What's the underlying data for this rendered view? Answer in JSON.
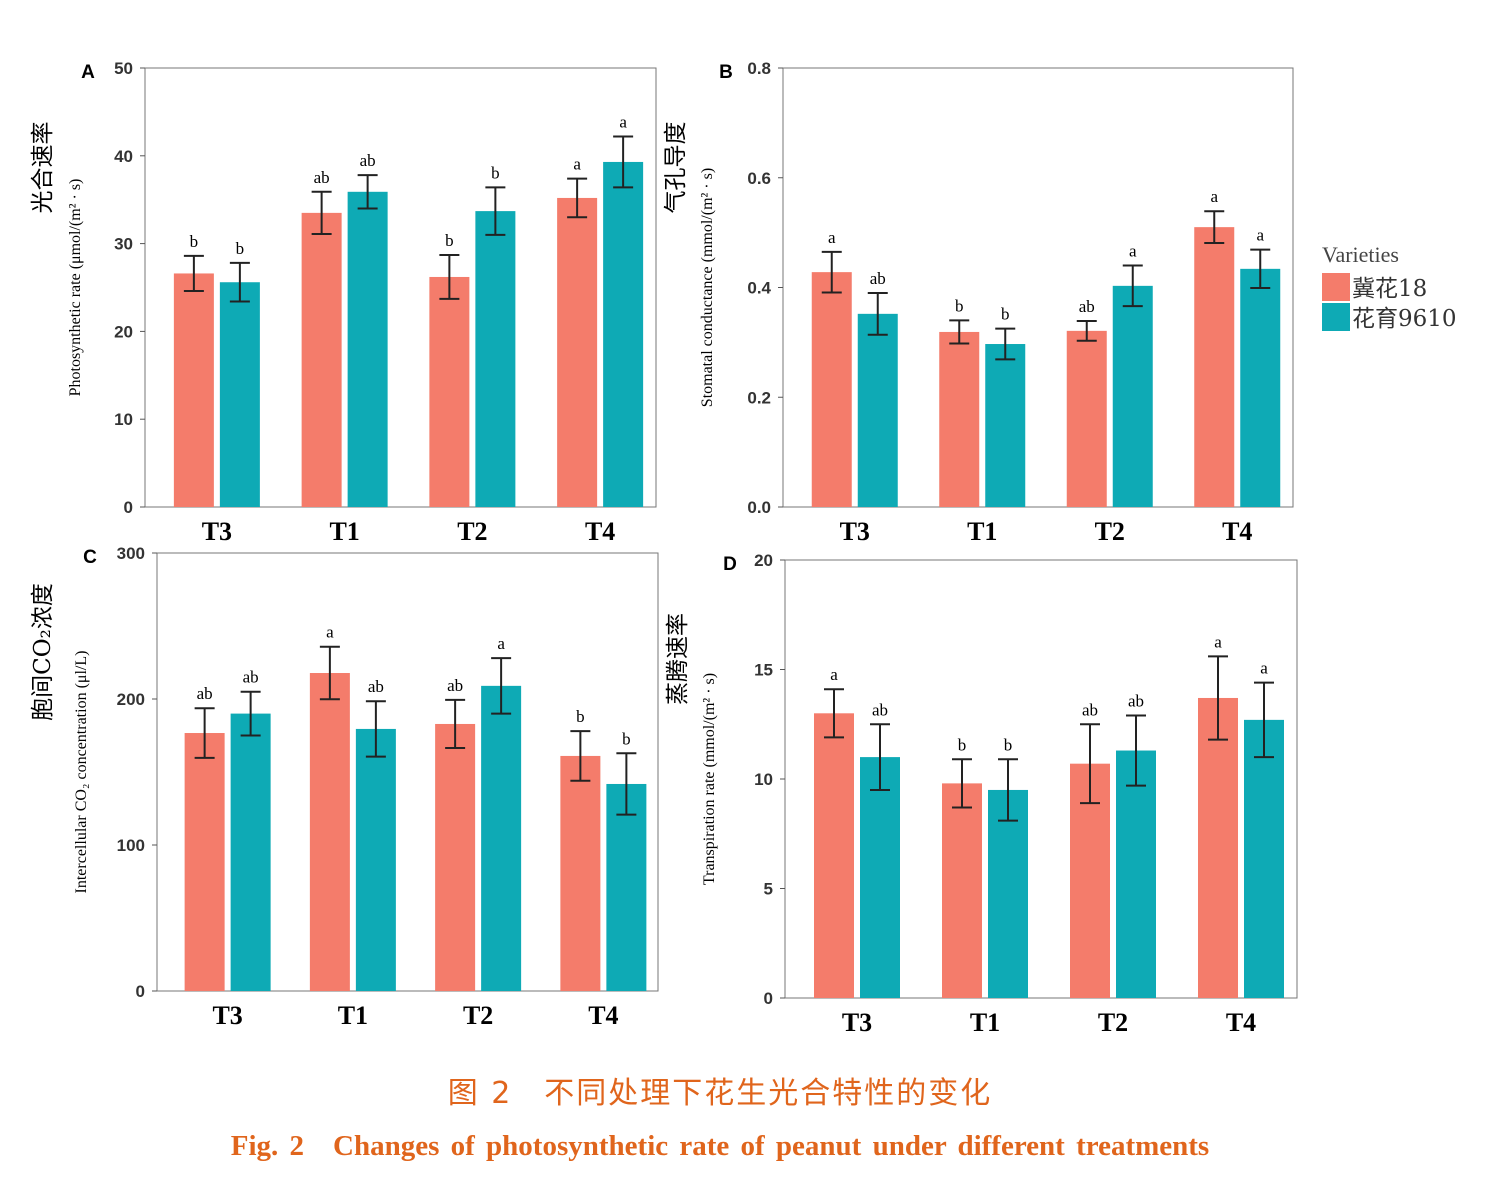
{
  "colors": {
    "series1": "#f47c6b",
    "series2": "#0eaab5",
    "caption": "#e0651c"
  },
  "legend": {
    "title": "Varieties",
    "items": [
      "冀花18",
      "花育9610"
    ],
    "placement": "right"
  },
  "caption": {
    "cn": "图 2　不同处理下花生光合特性的变化",
    "en": "Fig. 2　Changes of photosynthetic rate of peanut under different treatments"
  },
  "chart_data": [
    {
      "type": "bar",
      "panel": "A",
      "categories": [
        "T3",
        "T1",
        "T2",
        "T4"
      ],
      "ylabel_cn": "光合速率",
      "ylabel": "Photosynthetic rate (μmol/(m² · s)",
      "ylim": [
        0,
        50
      ],
      "yticks": [
        0,
        10,
        20,
        30,
        40,
        50
      ],
      "series": [
        {
          "name": "冀花18",
          "values": [
            26.6,
            33.5,
            26.2,
            35.2
          ],
          "errors": [
            2.0,
            2.4,
            2.5,
            2.2
          ],
          "letters": [
            "b",
            "ab",
            "b",
            "a"
          ]
        },
        {
          "name": "花育9610",
          "values": [
            25.6,
            35.9,
            33.7,
            39.3
          ],
          "errors": [
            2.2,
            1.9,
            2.7,
            2.9
          ],
          "letters": [
            "b",
            "ab",
            "b",
            "a"
          ]
        }
      ]
    },
    {
      "type": "bar",
      "panel": "B",
      "categories": [
        "T3",
        "T1",
        "T2",
        "T4"
      ],
      "ylabel_cn": "气孔导度",
      "ylabel": "Stomatal conductance (mmol/(m² · s)",
      "ylim": [
        0,
        0.8
      ],
      "yticks": [
        "0.0",
        "0.2",
        "0.4",
        "0.6",
        "0.8"
      ],
      "series": [
        {
          "name": "冀花18",
          "values": [
            0.428,
            0.319,
            0.321,
            0.51
          ],
          "errors": [
            0.037,
            0.021,
            0.018,
            0.029
          ],
          "letters": [
            "a",
            "b",
            "ab",
            "a"
          ]
        },
        {
          "name": "花育9610",
          "values": [
            0.352,
            0.297,
            0.403,
            0.434
          ],
          "errors": [
            0.038,
            0.028,
            0.037,
            0.035
          ],
          "letters": [
            "ab",
            "b",
            "a",
            "a"
          ]
        }
      ]
    },
    {
      "type": "bar",
      "panel": "C",
      "categories": [
        "T3",
        "T1",
        "T2",
        "T4"
      ],
      "ylabel_cn": "胞间CO₂浓度",
      "ylabel": "Intercellular CO₂ concentration (μl/L)",
      "ylim": [
        0,
        300
      ],
      "yticks": [
        0,
        100,
        200,
        300
      ],
      "series": [
        {
          "name": "冀花18",
          "values": [
            176.7,
            217.8,
            182.9,
            161
          ],
          "errors": [
            17,
            18,
            16.5,
            17
          ],
          "letters": [
            "ab",
            "a",
            "ab",
            "b"
          ]
        },
        {
          "name": "花育9610",
          "values": [
            190,
            179.5,
            209,
            141.8
          ],
          "errors": [
            15,
            19,
            19,
            21
          ],
          "letters": [
            "ab",
            "ab",
            "a",
            "b"
          ]
        }
      ]
    },
    {
      "type": "bar",
      "panel": "D",
      "categories": [
        "T3",
        "T1",
        "T2",
        "T4"
      ],
      "ylabel_cn": "蒸腾速率",
      "ylabel": "Transpiration rate (mmol/(m² · s)",
      "ylim": [
        0,
        20
      ],
      "yticks": [
        0,
        5,
        10,
        15,
        20
      ],
      "series": [
        {
          "name": "冀花18",
          "values": [
            13.0,
            9.8,
            10.7,
            13.7
          ],
          "errors": [
            1.1,
            1.1,
            1.8,
            1.9
          ],
          "letters": [
            "a",
            "b",
            "ab",
            "a"
          ]
        },
        {
          "name": "花育9610",
          "values": [
            11.0,
            9.5,
            11.3,
            12.7
          ],
          "errors": [
            1.5,
            1.4,
            1.6,
            1.7
          ],
          "letters": [
            "ab",
            "b",
            "ab",
            "a"
          ]
        }
      ]
    }
  ]
}
